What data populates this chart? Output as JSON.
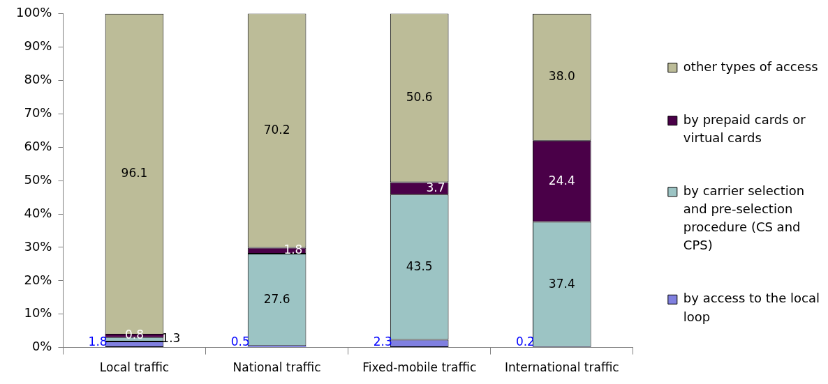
{
  "chart_data": {
    "type": "bar",
    "stacked": true,
    "categories": [
      "Local traffic",
      "National traffic",
      "Fixed-mobile traffic",
      "International traffic"
    ],
    "series": [
      {
        "name": "by access to the local loop",
        "color": "#8080e0",
        "values": [
          1.8,
          0.5,
          2.3,
          0.2
        ],
        "value_labels": [
          "1.8",
          "0.5",
          "2.3",
          "0.2"
        ]
      },
      {
        "name": "by carrier selection and pre-selection procedure (CS and CPS)",
        "color": "#9cc4c4",
        "values": [
          1.3,
          27.6,
          43.5,
          37.4
        ],
        "value_labels": [
          "1.3",
          "27.6",
          "43.5",
          "37.4"
        ]
      },
      {
        "name": "by prepaid cards or virtual cards",
        "color": "#4a0048",
        "values": [
          0.8,
          1.8,
          3.7,
          24.4
        ],
        "value_labels": [
          "0.8",
          "1.8",
          "3.7",
          "24.4"
        ]
      },
      {
        "name": "other types of access",
        "color": "#bcbc98",
        "values": [
          96.1,
          70.2,
          50.6,
          38.0
        ],
        "value_labels": [
          "96.1",
          "70.2",
          "50.6",
          "38.0"
        ]
      }
    ],
    "ylim": [
      0,
      100
    ],
    "yticks": [
      {
        "value": 0,
        "label": "0%"
      },
      {
        "value": 10,
        "label": "10%"
      },
      {
        "value": 20,
        "label": "20%"
      },
      {
        "value": 30,
        "label": "30%"
      },
      {
        "value": 40,
        "label": "40%"
      },
      {
        "value": 50,
        "label": "50%"
      },
      {
        "value": 60,
        "label": "60%"
      },
      {
        "value": 70,
        "label": "70%"
      },
      {
        "value": 80,
        "label": "80%"
      },
      {
        "value": 90,
        "label": "90%"
      },
      {
        "value": 100,
        "label": "100%"
      }
    ],
    "grid": false,
    "legend": "right"
  }
}
